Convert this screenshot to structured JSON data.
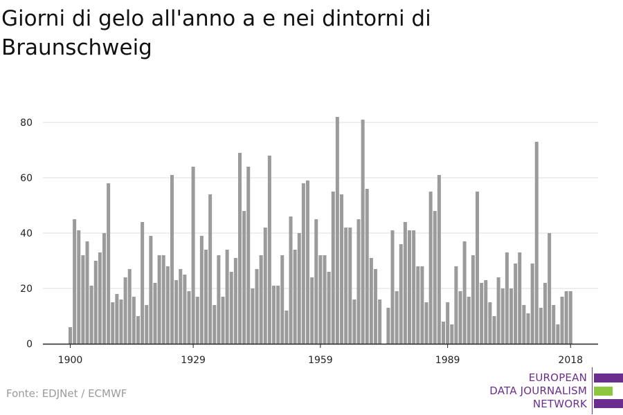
{
  "title": "Giorni di gelo all'anno a e nei dintorni di Braunschweig",
  "source": "Fonte: EDJNet / ECMWF",
  "brand": {
    "lines": [
      "EUROPEAN",
      "DATA JOURNALISM",
      "NETWORK"
    ],
    "colors": {
      "purple": "#6b2d8e",
      "green": "#8dc63f"
    }
  },
  "colors": {
    "bar": "#9b9b9b",
    "grid": "#dddddd",
    "axis": "#222222",
    "text": "#222222"
  },
  "chart_data": {
    "type": "bar",
    "title": "Giorni di gelo all'anno a e nei dintorni di Braunschweig",
    "xlabel": "",
    "ylabel": "",
    "ylim": [
      0,
      85
    ],
    "grid": true,
    "yticks": [
      0,
      20,
      40,
      60,
      80
    ],
    "xticks": [
      1900,
      1929,
      1959,
      1989,
      2018
    ],
    "x": [
      1900,
      1901,
      1902,
      1903,
      1904,
      1905,
      1906,
      1907,
      1908,
      1909,
      1910,
      1911,
      1912,
      1913,
      1914,
      1915,
      1916,
      1917,
      1918,
      1919,
      1920,
      1921,
      1922,
      1923,
      1924,
      1925,
      1926,
      1927,
      1928,
      1929,
      1930,
      1931,
      1932,
      1933,
      1934,
      1935,
      1936,
      1937,
      1938,
      1939,
      1940,
      1941,
      1942,
      1943,
      1944,
      1945,
      1946,
      1947,
      1948,
      1949,
      1950,
      1951,
      1952,
      1953,
      1954,
      1955,
      1956,
      1957,
      1958,
      1959,
      1960,
      1961,
      1962,
      1963,
      1964,
      1965,
      1966,
      1967,
      1968,
      1969,
      1970,
      1971,
      1972,
      1973,
      1974,
      1975,
      1976,
      1977,
      1978,
      1979,
      1980,
      1981,
      1982,
      1983,
      1984,
      1985,
      1986,
      1987,
      1988,
      1989,
      1990,
      1991,
      1992,
      1993,
      1994,
      1995,
      1996,
      1997,
      1998,
      1999,
      2000,
      2001,
      2002,
      2003,
      2004,
      2005,
      2006,
      2007,
      2008,
      2009,
      2010,
      2011,
      2012,
      2013,
      2014,
      2015,
      2016,
      2017,
      2018
    ],
    "values": [
      6,
      45,
      41,
      32,
      37,
      21,
      30,
      33,
      40,
      58,
      15,
      18,
      16,
      24,
      27,
      17,
      10,
      44,
      14,
      39,
      22,
      32,
      32,
      28,
      61,
      23,
      27,
      25,
      19,
      64,
      17,
      39,
      34,
      54,
      14,
      32,
      17,
      34,
      26,
      31,
      69,
      48,
      64,
      20,
      27,
      32,
      42,
      68,
      21,
      21,
      32,
      12,
      46,
      34,
      40,
      58,
      59,
      24,
      45,
      32,
      32,
      26,
      55,
      82,
      54,
      42,
      42,
      16,
      45,
      81,
      56,
      31,
      27,
      16,
      0,
      13,
      41,
      19,
      36,
      44,
      41,
      41,
      28,
      28,
      15,
      55,
      48,
      61,
      8,
      15,
      7,
      28,
      19,
      37,
      17,
      32,
      55,
      22,
      23,
      15,
      10,
      24,
      20,
      33,
      20,
      29,
      33,
      14,
      11,
      29,
      73,
      13,
      22,
      40,
      14,
      7,
      17,
      19,
      19
    ]
  }
}
